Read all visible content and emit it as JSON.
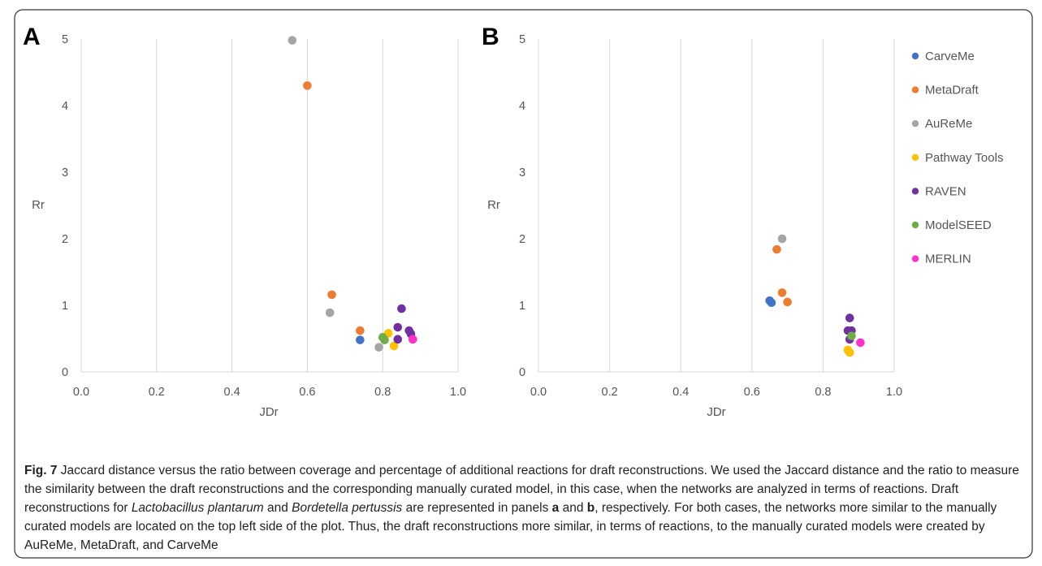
{
  "figure": {
    "panels": [
      {
        "label": "A"
      },
      {
        "label": "B"
      }
    ]
  },
  "series_meta": [
    {
      "name": "CarveMe",
      "color": "#4472C4"
    },
    {
      "name": "MetaDraft",
      "color": "#ED7D31"
    },
    {
      "name": "AuReMe",
      "color": "#A5A5A5"
    },
    {
      "name": "Pathway Tools",
      "color": "#FFC000"
    },
    {
      "name": "RAVEN",
      "color": "#7030A0"
    },
    {
      "name": "ModelSEED",
      "color": "#70AD47"
    },
    {
      "name": "MERLIN",
      "color": "#FF33CC"
    }
  ],
  "chart_data": [
    {
      "type": "scatter",
      "panel": "A",
      "xlabel": "JDr",
      "ylabel": "Rr",
      "xlim": [
        0.0,
        1.0
      ],
      "ylim": [
        0,
        5
      ],
      "xticks": [
        "0.0",
        "0.2",
        "0.4",
        "0.6",
        "0.8",
        "1.0"
      ],
      "yticks": [
        "0",
        "1",
        "2",
        "3",
        "4",
        "5"
      ],
      "grid": "vertical",
      "legend": "right",
      "series": [
        {
          "name": "CarveMe",
          "points": [
            [
              0.74,
              0.48
            ]
          ]
        },
        {
          "name": "MetaDraft",
          "points": [
            [
              0.6,
              4.3
            ],
            [
              0.665,
              1.16
            ],
            [
              0.74,
              0.62
            ]
          ]
        },
        {
          "name": "AuReMe",
          "points": [
            [
              0.56,
              4.98
            ],
            [
              0.66,
              0.89
            ],
            [
              0.79,
              0.37
            ]
          ]
        },
        {
          "name": "Pathway Tools",
          "points": [
            [
              0.815,
              0.58
            ],
            [
              0.83,
              0.39
            ]
          ]
        },
        {
          "name": "RAVEN",
          "points": [
            [
              0.85,
              0.95
            ],
            [
              0.84,
              0.67
            ],
            [
              0.87,
              0.62
            ],
            [
              0.875,
              0.57
            ],
            [
              0.84,
              0.49
            ]
          ]
        },
        {
          "name": "ModelSEED",
          "points": [
            [
              0.8,
              0.52
            ],
            [
              0.805,
              0.48
            ]
          ]
        },
        {
          "name": "MERLIN",
          "points": [
            [
              0.88,
              0.49
            ]
          ]
        }
      ]
    },
    {
      "type": "scatter",
      "panel": "B",
      "xlabel": "JDr",
      "ylabel": "Rr",
      "xlim": [
        0.0,
        1.0
      ],
      "ylim": [
        0,
        5
      ],
      "xticks": [
        "0.0",
        "0.2",
        "0.4",
        "0.6",
        "0.8",
        "1.0"
      ],
      "yticks": [
        "0",
        "1",
        "2",
        "3",
        "4",
        "5"
      ],
      "grid": "vertical",
      "legend": "right",
      "series": [
        {
          "name": "CarveMe",
          "points": [
            [
              0.65,
              1.07
            ],
            [
              0.655,
              1.04
            ]
          ]
        },
        {
          "name": "MetaDraft",
          "points": [
            [
              0.67,
              1.84
            ],
            [
              0.685,
              1.19
            ],
            [
              0.7,
              1.05
            ]
          ]
        },
        {
          "name": "AuReMe",
          "points": [
            [
              0.685,
              2.0
            ]
          ]
        },
        {
          "name": "Pathway Tools",
          "points": [
            [
              0.87,
              0.33
            ],
            [
              0.875,
              0.29
            ]
          ]
        },
        {
          "name": "RAVEN",
          "points": [
            [
              0.875,
              0.81
            ],
            [
              0.87,
              0.62
            ],
            [
              0.88,
              0.62
            ],
            [
              0.875,
              0.49
            ]
          ]
        },
        {
          "name": "ModelSEED",
          "points": [
            [
              0.88,
              0.54
            ]
          ]
        },
        {
          "name": "MERLIN",
          "points": [
            [
              0.905,
              0.44
            ]
          ]
        }
      ]
    }
  ],
  "caption": {
    "fig_label": "Fig. 7",
    "s1": " Jaccard distance versus the ratio between coverage and percentage of additional reactions for draft reconstructions. We used the Jaccard distance and the ratio to measure the similarity between the draft reconstructions and the corresponding manually curated model, in this case, when the networks are analyzed in terms of reactions. Draft reconstructions for ",
    "species1": "Lactobacillus plantarum",
    "s2": " and ",
    "species2": "Bordetella pertussis",
    "s3": " are represented in panels ",
    "panel_a": "a",
    "s4": " and ",
    "panel_b": "b",
    "s5": ", respectively. For both cases, the networks more similar to the manually curated models are located on the top left side of the plot. Thus, the draft reconstructions more similar, in terms of reactions, to the manually curated models were created by AuReMe, MetaDraft, and CarveMe"
  }
}
